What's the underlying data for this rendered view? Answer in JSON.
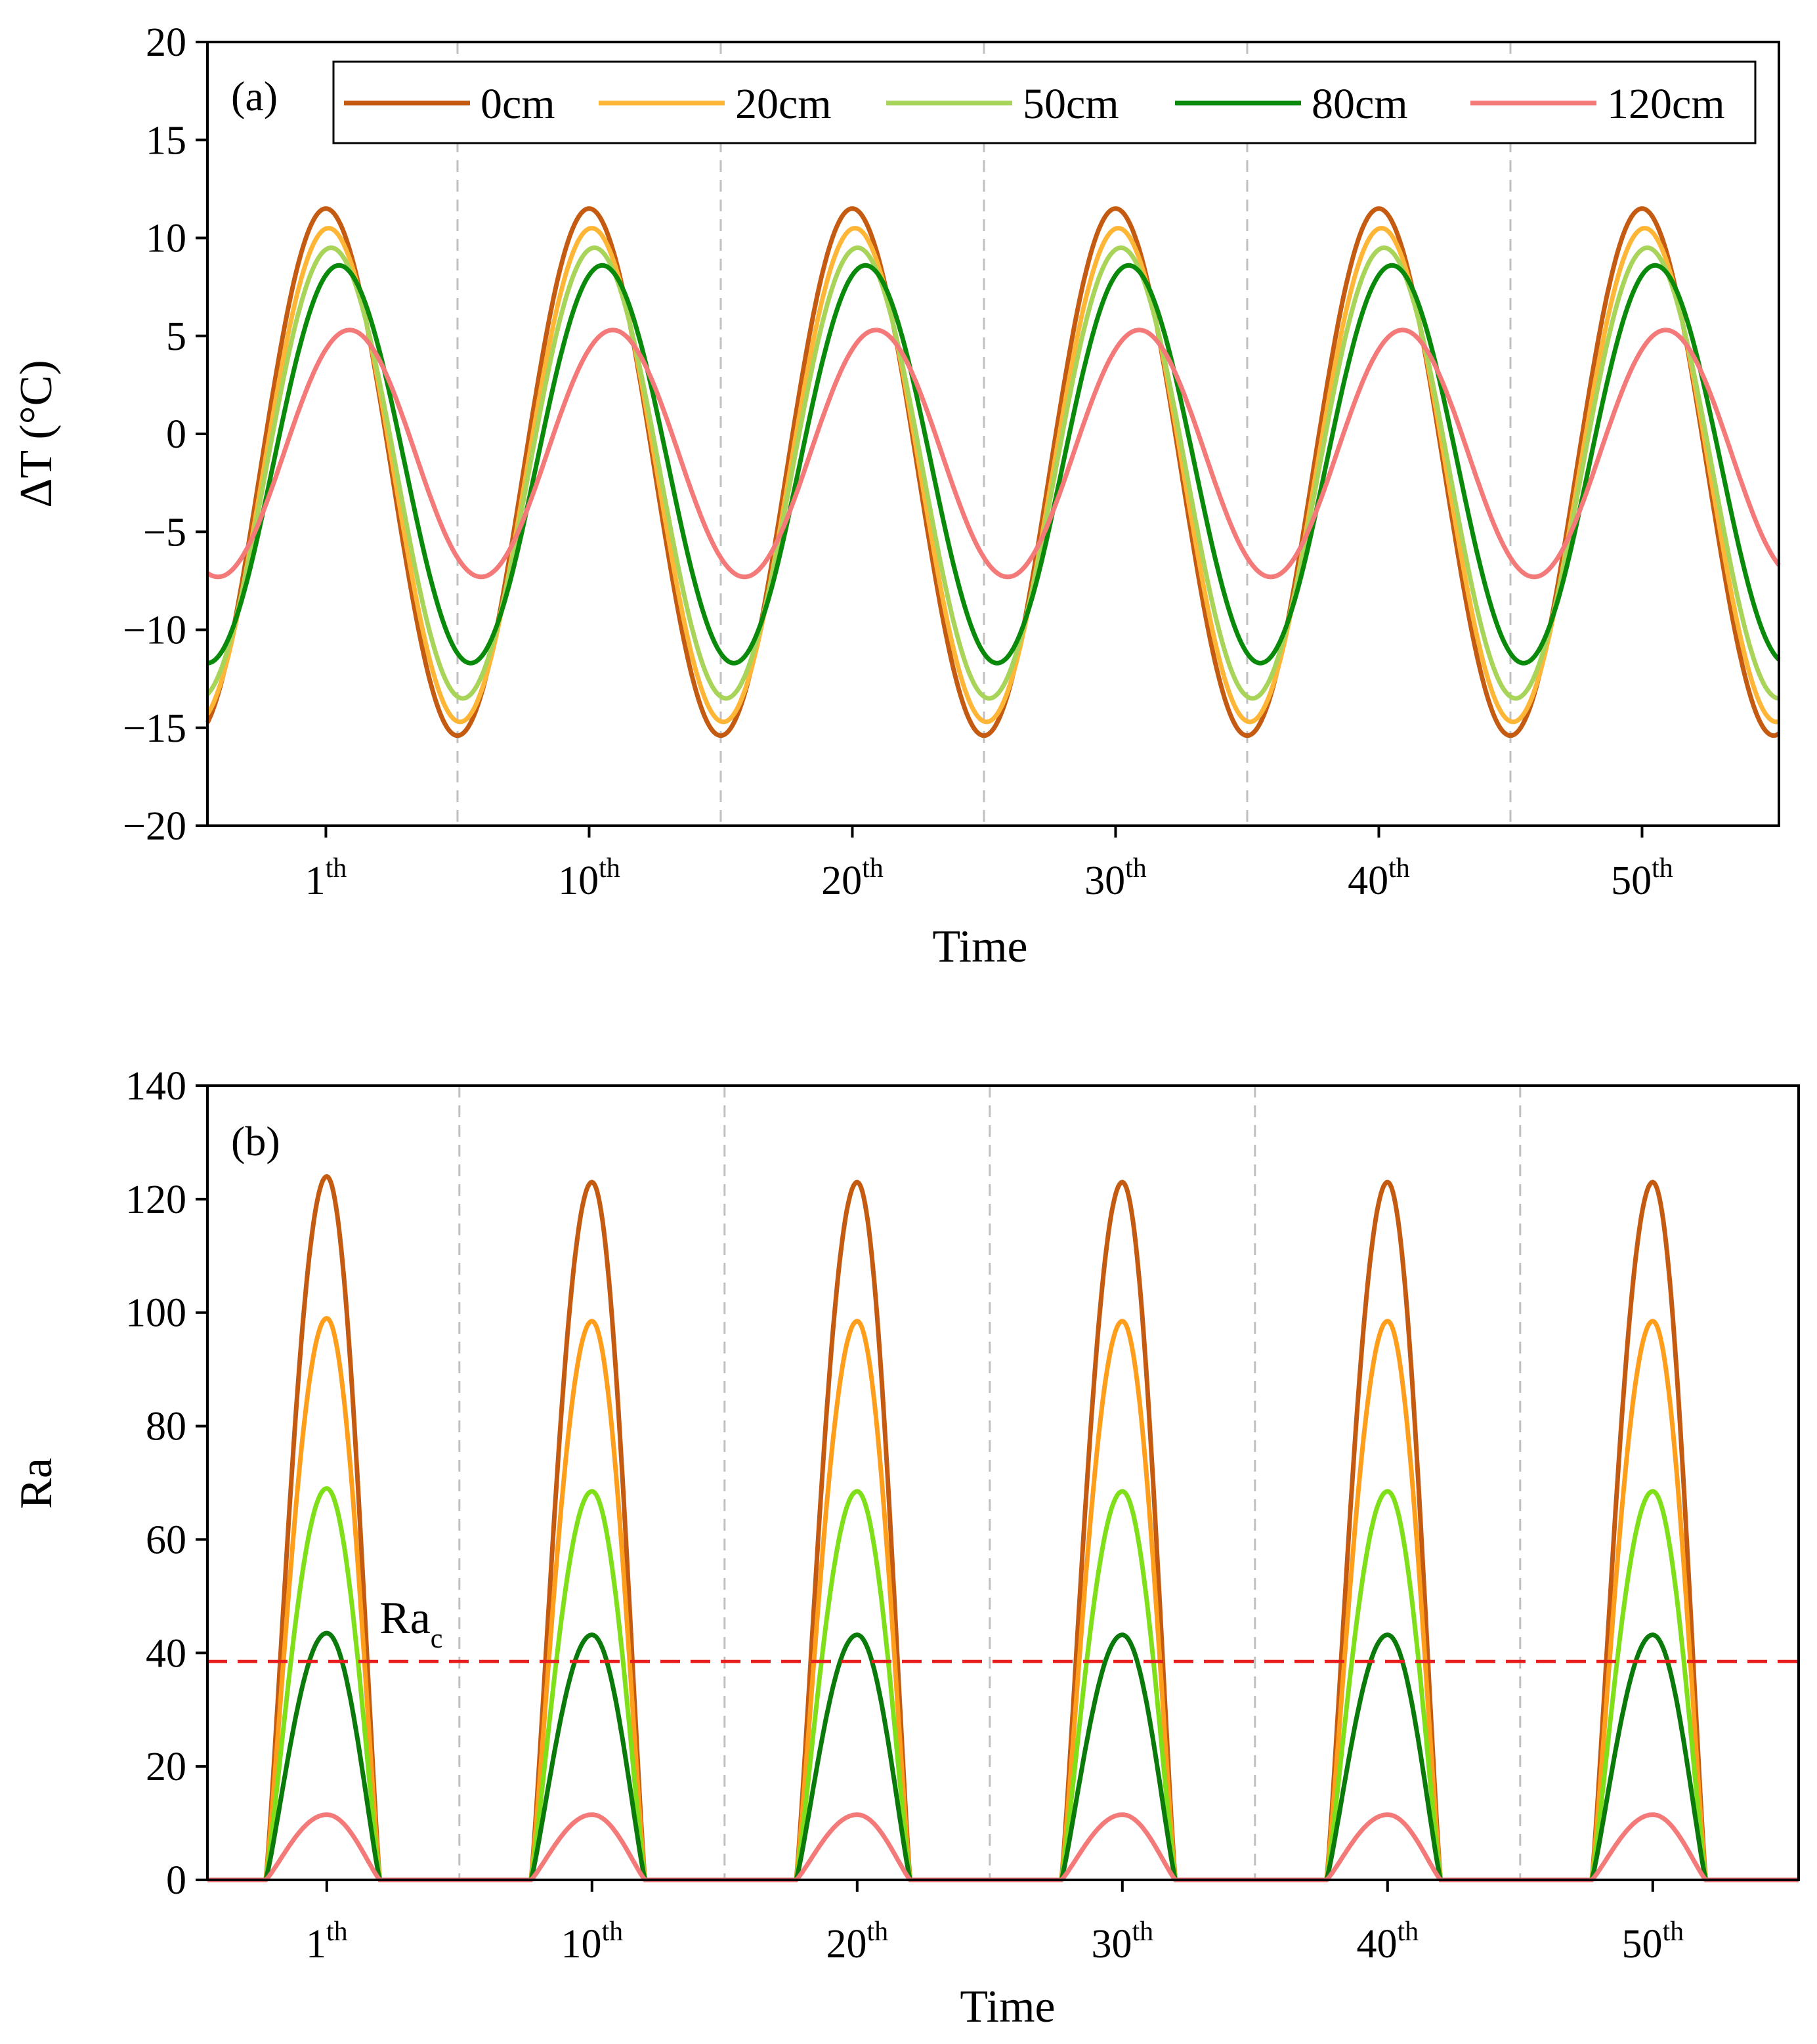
{
  "chart_data": [
    {
      "type": "line",
      "panel_label": "(a)",
      "xlabel": "Time",
      "ylabel": "ΔT (°C)",
      "ylim": [
        -20,
        20
      ],
      "yticks": [
        "20",
        "15",
        "10",
        "5",
        "0",
        "−5",
        "−10",
        "−15",
        "−20"
      ],
      "xlim": [
        -4.5,
        55.2
      ],
      "xticks": [
        {
          "base": "1",
          "sup": "th",
          "x": 0
        },
        {
          "base": "10",
          "sup": "th",
          "x": 10
        },
        {
          "base": "20",
          "sup": "th",
          "x": 20
        },
        {
          "base": "30",
          "sup": "th",
          "x": 30
        },
        {
          "base": "40",
          "sup": "th",
          "x": 40
        },
        {
          "base": "50",
          "sup": "th",
          "x": 50
        }
      ],
      "vlines": [
        5,
        15,
        25,
        35,
        45
      ],
      "legend_position": "top",
      "period": 10,
      "series": [
        {
          "name": "0cm",
          "color": "#C55A11",
          "peak_x": 0.0,
          "max": 11.5,
          "min": -15.4
        },
        {
          "name": "20cm",
          "color": "#FFB636",
          "peak_x": 0.1,
          "max": 10.5,
          "min": -14.7
        },
        {
          "name": "50cm",
          "color": "#A9D45A",
          "peak_x": 0.2,
          "max": 9.5,
          "min": -13.5
        },
        {
          "name": "80cm",
          "color": "#0A8A0A",
          "peak_x": 0.5,
          "max": 8.6,
          "min": -11.7
        },
        {
          "name": "120cm",
          "color": "#F47A7A",
          "peak_x": 0.9,
          "max": 5.3,
          "min": -7.3
        }
      ]
    },
    {
      "type": "line",
      "panel_label": "(b)",
      "xlabel": "Time",
      "ylabel": "Ra",
      "ylim": [
        0,
        140
      ],
      "yticks": [
        "140",
        "120",
        "100",
        "80",
        "60",
        "40",
        "20",
        "0"
      ],
      "xlim": [
        -4.5,
        55.5
      ],
      "xticks": [
        {
          "base": "1",
          "sup": "th",
          "x": 0
        },
        {
          "base": "10",
          "sup": "th",
          "x": 10
        },
        {
          "base": "20",
          "sup": "th",
          "x": 20
        },
        {
          "base": "30",
          "sup": "th",
          "x": 30
        },
        {
          "base": "40",
          "sup": "th",
          "x": 40
        },
        {
          "base": "50",
          "sup": "th",
          "x": 50
        }
      ],
      "vlines": [
        5,
        15,
        25,
        35,
        45
      ],
      "threshold": {
        "label_base": "Ra",
        "label_sub": "c",
        "value": 38.5,
        "color": "#E81E1E"
      },
      "period": 10,
      "series": [
        {
          "name": "0cm",
          "color": "#C55A11",
          "peaks": [
            124,
            123,
            123,
            123,
            123,
            123
          ]
        },
        {
          "name": "20cm",
          "color": "#FF9E1B",
          "peaks": [
            99,
            98.5,
            98.5,
            98.5,
            98.5,
            98.5
          ]
        },
        {
          "name": "50cm",
          "color": "#7FE01A",
          "peaks": [
            69,
            68.5,
            68.5,
            68.5,
            68.5,
            68.5
          ]
        },
        {
          "name": "80cm",
          "color": "#0A7A0A",
          "peaks": [
            43.5,
            43.2,
            43.2,
            43.2,
            43.2,
            43.2
          ]
        },
        {
          "name": "120cm",
          "color": "#F47A7A",
          "peaks": [
            11.5,
            11.5,
            11.5,
            11.5,
            11.5,
            11.5
          ]
        }
      ]
    }
  ]
}
